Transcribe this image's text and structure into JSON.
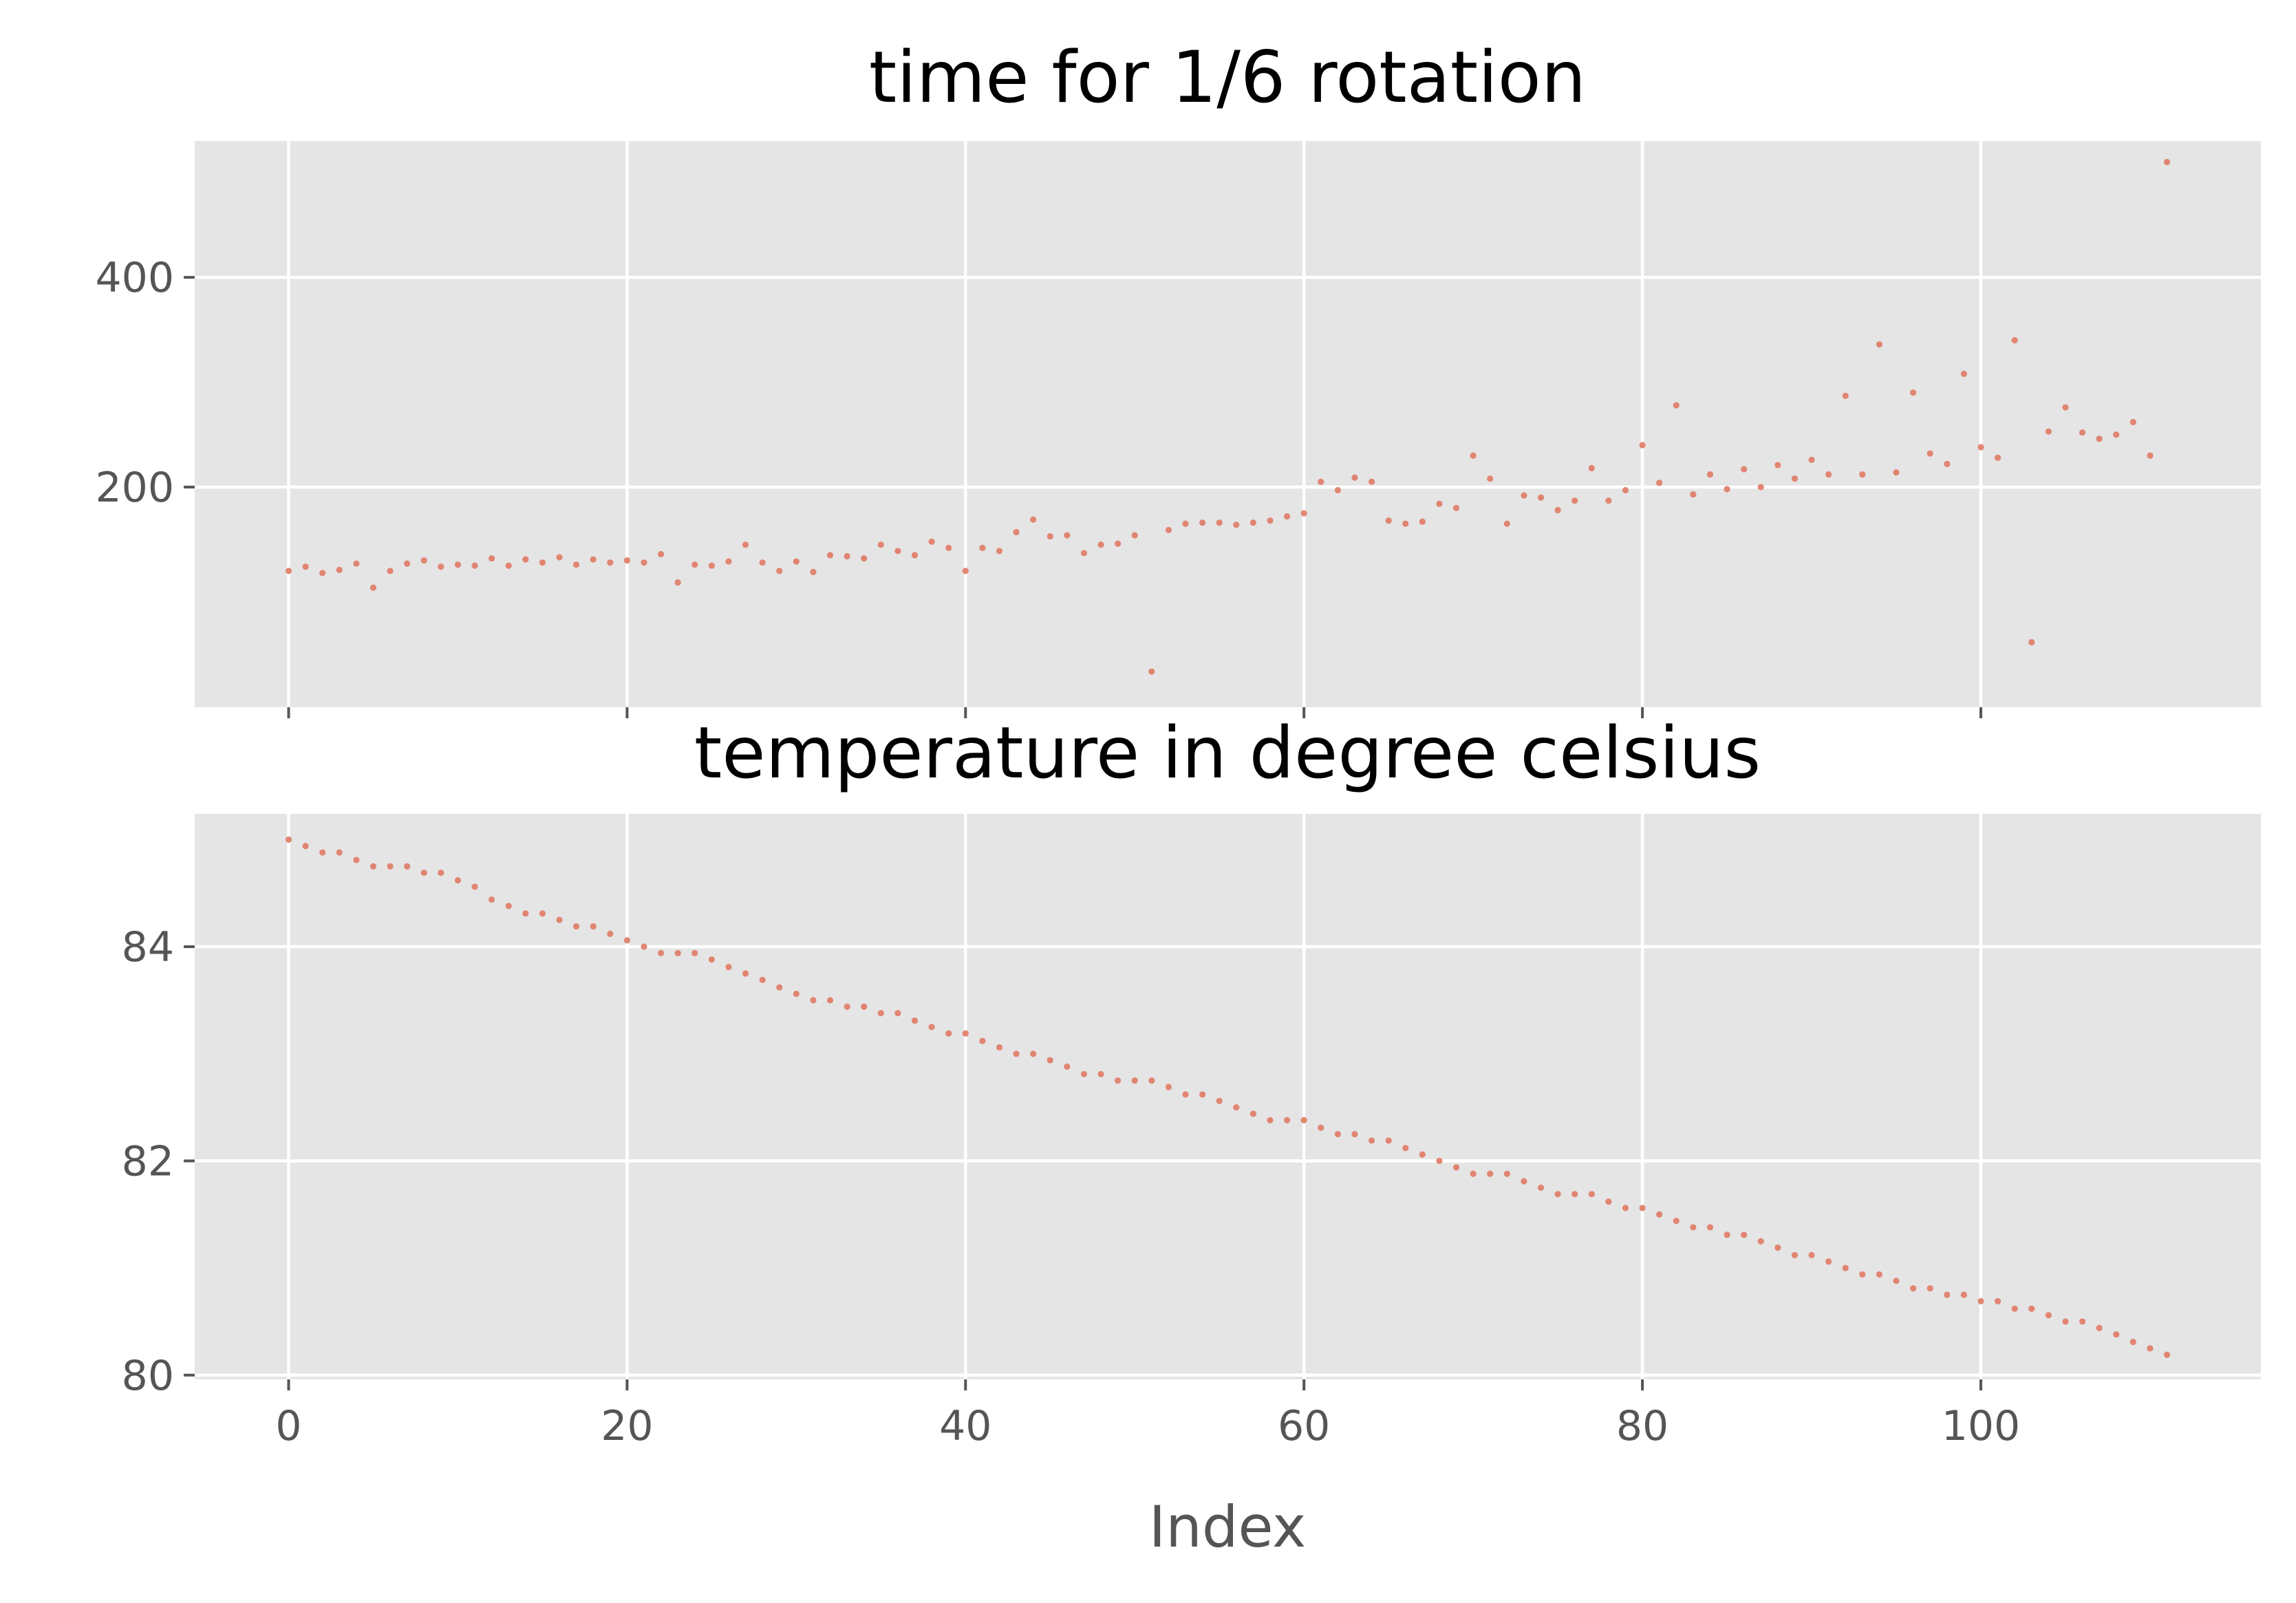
{
  "chart_data": [
    {
      "type": "scatter",
      "title": "time for 1/6 rotation",
      "xlabel": "",
      "ylabel": "",
      "xlim": [
        -5.55,
        116.55
      ],
      "ylim": [
        -10,
        530
      ],
      "x_ticks": [
        0,
        20,
        40,
        60,
        80,
        100
      ],
      "x_tick_labels_visible": false,
      "y_ticks": [
        200,
        400
      ],
      "y_tick_labels": [
        "200",
        "400"
      ],
      "grid": true,
      "marker_color": "#e07f6c",
      "x": [
        0,
        1,
        2,
        3,
        4,
        5,
        6,
        7,
        8,
        9,
        10,
        11,
        12,
        13,
        14,
        15,
        16,
        17,
        18,
        19,
        20,
        21,
        22,
        23,
        24,
        25,
        26,
        27,
        28,
        29,
        30,
        31,
        32,
        33,
        34,
        35,
        36,
        37,
        38,
        39,
        40,
        41,
        42,
        43,
        44,
        45,
        46,
        47,
        48,
        49,
        50,
        51,
        52,
        53,
        54,
        55,
        56,
        57,
        58,
        59,
        60,
        61,
        62,
        63,
        64,
        65,
        66,
        67,
        68,
        69,
        70,
        71,
        72,
        73,
        74,
        75,
        76,
        77,
        78,
        79,
        80,
        81,
        82,
        83,
        84,
        85,
        86,
        87,
        88,
        89,
        90,
        91,
        92,
        93,
        94,
        95,
        96,
        97,
        98,
        99,
        100,
        101,
        102,
        103,
        104,
        105,
        106,
        107,
        108,
        109,
        110,
        111
      ],
      "y": [
        120,
        124,
        118,
        121,
        127,
        104,
        120,
        127,
        130,
        124,
        126,
        125,
        132,
        125,
        131,
        128,
        133,
        126,
        131,
        128,
        130,
        128,
        136,
        109,
        126,
        125,
        129,
        145,
        128,
        120,
        129,
        119,
        135,
        134,
        132,
        145,
        139,
        135,
        148,
        142,
        120,
        142,
        139,
        157,
        169,
        153,
        154,
        137,
        145,
        146,
        154,
        24,
        159,
        165,
        166,
        166,
        164,
        166,
        168,
        172,
        175,
        205,
        197,
        209,
        205,
        168,
        165,
        167,
        184,
        180,
        230,
        208,
        165,
        192,
        190,
        178,
        187,
        218,
        187,
        197,
        240,
        204,
        278,
        193,
        212,
        198,
        217,
        200,
        221,
        208,
        226,
        212,
        287,
        212,
        336,
        214,
        290,
        232,
        222,
        308,
        238,
        228,
        340,
        52,
        253,
        276,
        252,
        246,
        250,
        262,
        230,
        510
      ]
    },
    {
      "type": "scatter",
      "title": "temperature in degree celsius",
      "xlabel": "Index",
      "ylabel": "",
      "xlim": [
        -5.55,
        116.55
      ],
      "ylim": [
        79.96,
        85.24
      ],
      "x_ticks": [
        0,
        20,
        40,
        60,
        80,
        100
      ],
      "x_tick_labels": [
        "0",
        "20",
        "40",
        "60",
        "80",
        "100"
      ],
      "y_ticks": [
        80,
        82,
        84
      ],
      "y_tick_labels": [
        "80",
        "82",
        "84"
      ],
      "grid": true,
      "marker_color": "#e07f6c",
      "x": [
        0,
        1,
        2,
        3,
        4,
        5,
        6,
        7,
        8,
        9,
        10,
        11,
        12,
        13,
        14,
        15,
        16,
        17,
        18,
        19,
        20,
        21,
        22,
        23,
        24,
        25,
        26,
        27,
        28,
        29,
        30,
        31,
        32,
        33,
        34,
        35,
        36,
        37,
        38,
        39,
        40,
        41,
        42,
        43,
        44,
        45,
        46,
        47,
        48,
        49,
        50,
        51,
        52,
        53,
        54,
        55,
        56,
        57,
        58,
        59,
        60,
        61,
        62,
        63,
        64,
        65,
        66,
        67,
        68,
        69,
        70,
        71,
        72,
        73,
        74,
        75,
        76,
        77,
        78,
        79,
        80,
        81,
        82,
        83,
        84,
        85,
        86,
        87,
        88,
        89,
        90,
        91,
        92,
        93,
        94,
        95,
        96,
        97,
        98,
        99,
        100,
        101,
        102,
        103,
        104,
        105,
        106,
        107,
        108,
        109,
        110,
        111
      ],
      "y": [
        85.0,
        84.94,
        84.88,
        84.88,
        84.81,
        84.75,
        84.75,
        84.75,
        84.69,
        84.69,
        84.62,
        84.56,
        84.44,
        84.38,
        84.31,
        84.31,
        84.25,
        84.19,
        84.19,
        84.12,
        84.06,
        84.0,
        83.94,
        83.94,
        83.94,
        83.88,
        83.81,
        83.75,
        83.69,
        83.62,
        83.56,
        83.5,
        83.5,
        83.44,
        83.44,
        83.38,
        83.38,
        83.31,
        83.25,
        83.19,
        83.19,
        83.12,
        83.06,
        83.0,
        83.0,
        82.94,
        82.88,
        82.81,
        82.81,
        82.75,
        82.75,
        82.75,
        82.69,
        82.62,
        82.62,
        82.56,
        82.5,
        82.44,
        82.38,
        82.38,
        82.38,
        82.31,
        82.25,
        82.25,
        82.19,
        82.19,
        82.12,
        82.06,
        82.0,
        81.94,
        81.88,
        81.88,
        81.88,
        81.81,
        81.75,
        81.69,
        81.69,
        81.69,
        81.62,
        81.56,
        81.56,
        81.5,
        81.44,
        81.38,
        81.38,
        81.31,
        81.31,
        81.25,
        81.19,
        81.12,
        81.12,
        81.06,
        81.0,
        80.94,
        80.94,
        80.88,
        80.81,
        80.81,
        80.75,
        80.75,
        80.69,
        80.69,
        80.62,
        80.62,
        80.56,
        80.5,
        80.5,
        80.44,
        80.38,
        80.31,
        80.25,
        80.19
      ]
    }
  ]
}
